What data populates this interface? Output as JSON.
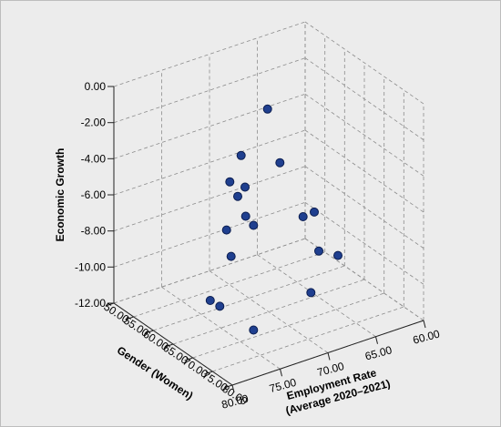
{
  "chart_data": {
    "type": "scatter",
    "subtype": "3d-scatter",
    "z_axis": {
      "title": "Economic Growth",
      "range": [
        -12,
        0
      ],
      "ticks": [
        "0.00",
        "-2.00",
        "-4.00",
        "-6.00",
        "-8.00",
        "-10.00",
        "-12.00"
      ]
    },
    "gender_axis": {
      "title": "Gender (Women)",
      "range": [
        50,
        80
      ],
      "ticks": [
        "50.00",
        "55.00",
        "60.00",
        "65.00",
        "70.00",
        "75.00",
        "80.00"
      ]
    },
    "employment_axis": {
      "title_line1": "Employment Rate",
      "title_line2": "(Average 2020–2021)",
      "range": [
        60,
        80
      ],
      "ticks": [
        "80.00",
        "75.00",
        "70.00",
        "65.00",
        "60.00"
      ]
    },
    "grid": true,
    "marker_color": "#1f3f8f",
    "marker_stroke": "#0b1d4f",
    "background": "#ececec",
    "points": [
      {
        "gender": 55,
        "employment": 66,
        "growth": -3.0
      },
      {
        "gender": 58,
        "employment": 70,
        "growth": -4.4
      },
      {
        "gender": 63,
        "employment": 68,
        "growth": -4.4
      },
      {
        "gender": 60,
        "employment": 72,
        "growth": -5.2
      },
      {
        "gender": 62,
        "employment": 72,
        "growth": -5.7
      },
      {
        "gender": 59,
        "employment": 70,
        "growth": -6.0
      },
      {
        "gender": 64,
        "employment": 72,
        "growth": -6.5
      },
      {
        "gender": 66,
        "employment": 72,
        "growth": -6.7
      },
      {
        "gender": 64,
        "employment": 74,
        "growth": -6.9
      },
      {
        "gender": 70,
        "employment": 76,
        "growth": -7.1
      },
      {
        "gender": 64,
        "employment": 66,
        "growth": -7.6
      },
      {
        "gender": 62,
        "employment": 64,
        "growth": -8.0
      },
      {
        "gender": 72,
        "employment": 79,
        "growth": -8.7
      },
      {
        "gender": 68,
        "employment": 66,
        "growth": -8.9
      },
      {
        "gender": 72,
        "employment": 78,
        "growth": -9.2
      },
      {
        "gender": 68,
        "employment": 64,
        "growth": -9.5
      },
      {
        "gender": 66,
        "employment": 66,
        "growth": -11.5
      },
      {
        "gender": 66,
        "employment": 72,
        "growth": -12.5
      }
    ]
  }
}
